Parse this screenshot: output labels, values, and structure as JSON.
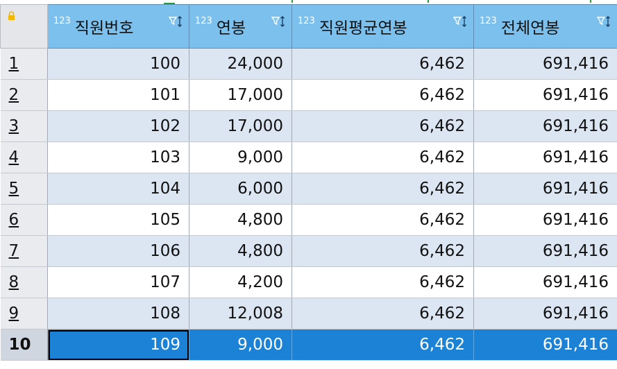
{
  "grid": {
    "columns": [
      {
        "type_badge": "123",
        "title": "직원번호",
        "icon": "filter-sort-icon"
      },
      {
        "type_badge": "123",
        "title": "연봉",
        "icon": "filter-sort-icon"
      },
      {
        "type_badge": "123",
        "title": "직원평균연봉",
        "icon": "filter-sort-icon"
      },
      {
        "type_badge": "123",
        "title": "전체연봉",
        "icon": "filter-sort-icon"
      }
    ],
    "rows": [
      {
        "num": "1",
        "cells": [
          "100",
          "24,000",
          "6,462",
          "691,416"
        ]
      },
      {
        "num": "2",
        "cells": [
          "101",
          "17,000",
          "6,462",
          "691,416"
        ]
      },
      {
        "num": "3",
        "cells": [
          "102",
          "17,000",
          "6,462",
          "691,416"
        ]
      },
      {
        "num": "4",
        "cells": [
          "103",
          "9,000",
          "6,462",
          "691,416"
        ]
      },
      {
        "num": "5",
        "cells": [
          "104",
          "6,000",
          "6,462",
          "691,416"
        ]
      },
      {
        "num": "6",
        "cells": [
          "105",
          "4,800",
          "6,462",
          "691,416"
        ]
      },
      {
        "num": "7",
        "cells": [
          "106",
          "4,800",
          "6,462",
          "691,416"
        ]
      },
      {
        "num": "8",
        "cells": [
          "107",
          "4,200",
          "6,462",
          "691,416"
        ]
      },
      {
        "num": "9",
        "cells": [
          "108",
          "12,008",
          "6,462",
          "691,416"
        ]
      },
      {
        "num": "10",
        "cells": [
          "109",
          "9,000",
          "6,462",
          "691,416"
        ]
      }
    ],
    "selected_row": 10
  },
  "colors": {
    "header": "#7cc0ee",
    "row_alt": "#dce6f2",
    "selection": "#1c82d6",
    "lock": "#f2b705"
  },
  "icons": {
    "corner": "lock-icon"
  }
}
